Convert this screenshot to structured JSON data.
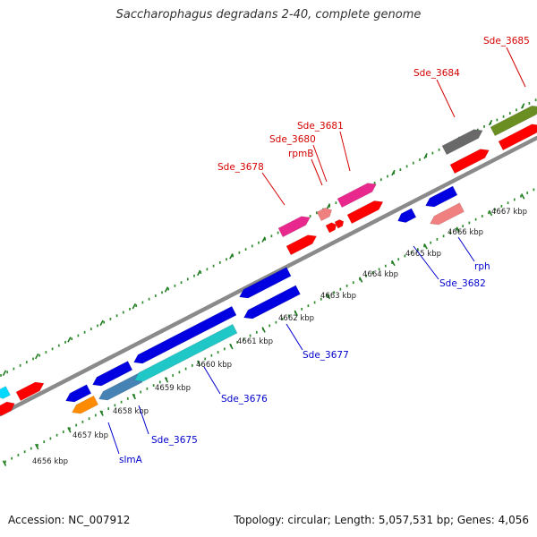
{
  "title": "Saccharophagus degradans 2-40, complete genome",
  "footer": {
    "accession": "Accession: NC_007912",
    "summary": "Topology: circular; Length: 5,057,531 bp; Genes: 4,056"
  },
  "colors": {
    "backbone": "#8a8a8a",
    "ticks": "#2e8b2e",
    "label_forward": "#d40000",
    "label_reverse": "#0000cc"
  },
  "ticks": [
    "4656 kbp",
    "4657 kbp",
    "4658 kbp",
    "4659 kbp",
    "4660 kbp",
    "4661 kbp",
    "4662 kbp",
    "4663 kbp",
    "4664 kbp",
    "4665 kbp",
    "4666 kbp",
    "4667 kbp"
  ],
  "genes": [
    {
      "name": "slmA",
      "color": "#ff8c00",
      "strand": "reverse"
    },
    {
      "name": "Sde_3675",
      "color": "#4682b4",
      "strand": "reverse"
    },
    {
      "name": "Sde_3676",
      "color": "#20c7c7",
      "strand": "reverse"
    },
    {
      "name": "Sde_3677",
      "color": "#0000e0",
      "strand": "reverse"
    },
    {
      "name": "Sde_3678",
      "color": "#e8288c",
      "strand": "forward"
    },
    {
      "name": "rpmB",
      "color": "#f08080",
      "strand": "forward"
    },
    {
      "name": "Sde_3680",
      "color": "#ff0000",
      "strand": "forward"
    },
    {
      "name": "Sde_3681",
      "color": "#e8288c",
      "strand": "forward"
    },
    {
      "name": "Sde_3682",
      "color": "#0000e0",
      "strand": "reverse"
    },
    {
      "name": "rph",
      "color": "#f08080",
      "strand": "reverse"
    },
    {
      "name": "Sde_3684",
      "color": "#696969",
      "strand": "forward"
    },
    {
      "name": "Sde_3685",
      "color": "#6b8e23",
      "strand": "forward"
    }
  ]
}
